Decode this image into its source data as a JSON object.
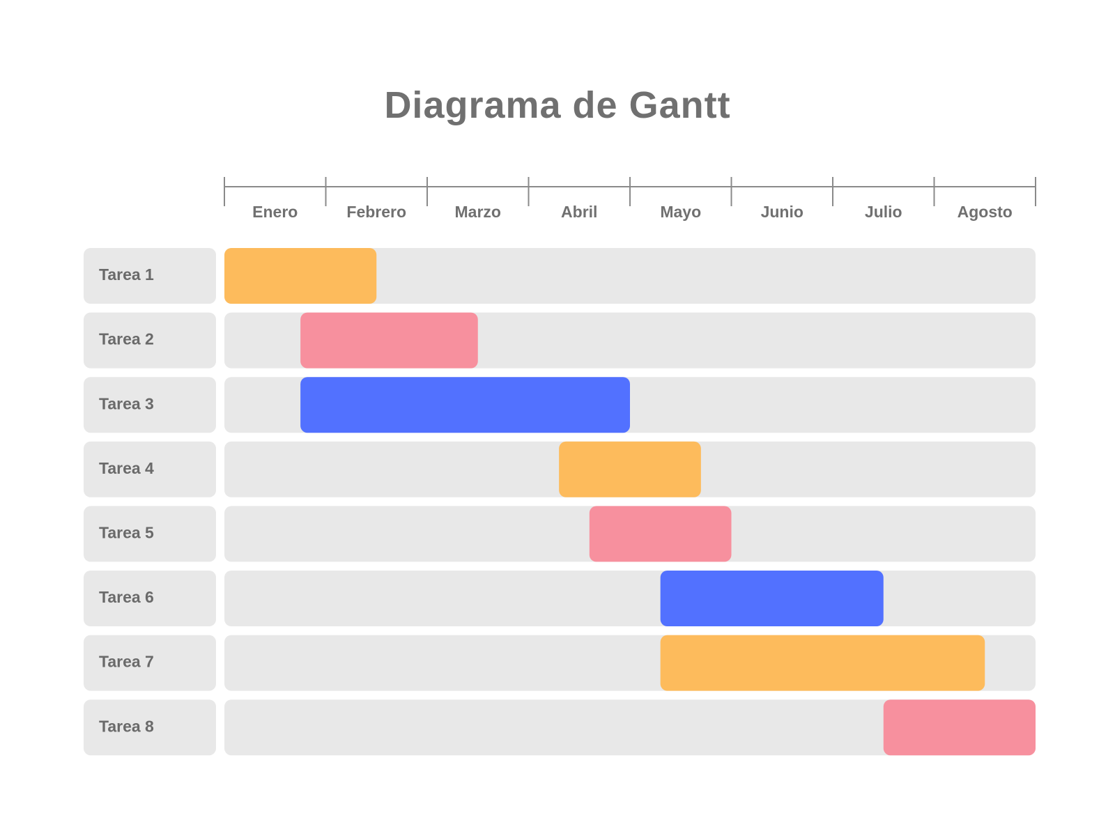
{
  "chart_data": {
    "type": "bar",
    "subtype": "gantt",
    "title": "Diagrama de Gantt",
    "months": [
      "Enero",
      "Febrero",
      "Marzo",
      "Abril",
      "Mayo",
      "Junio",
      "Julio",
      "Agosto"
    ],
    "xlim": [
      0,
      8
    ],
    "grid": false,
    "legend": "none",
    "tasks": [
      {
        "name": "Tarea 1",
        "start": 0.0,
        "end": 1.5,
        "color": "#FDBB5C"
      },
      {
        "name": "Tarea 2",
        "start": 0.75,
        "end": 2.5,
        "color": "#F7909E"
      },
      {
        "name": "Tarea 3",
        "start": 0.75,
        "end": 4.0,
        "color": "#5271FF"
      },
      {
        "name": "Tarea 4",
        "start": 3.3,
        "end": 4.7,
        "color": "#FDBB5C"
      },
      {
        "name": "Tarea 5",
        "start": 3.6,
        "end": 5.0,
        "color": "#F7909E"
      },
      {
        "name": "Tarea 6",
        "start": 4.3,
        "end": 6.5,
        "color": "#5271FF"
      },
      {
        "name": "Tarea 7",
        "start": 4.3,
        "end": 7.5,
        "color": "#FDBB5C"
      },
      {
        "name": "Tarea 8",
        "start": 6.5,
        "end": 8.0,
        "color": "#F7909E"
      }
    ]
  },
  "colors": {
    "track": "#E8E8E8",
    "text": "#707070",
    "axis": "#8a8a8a",
    "orange": "#FDBB5C",
    "pink": "#F7909E",
    "blue": "#5271FF"
  }
}
